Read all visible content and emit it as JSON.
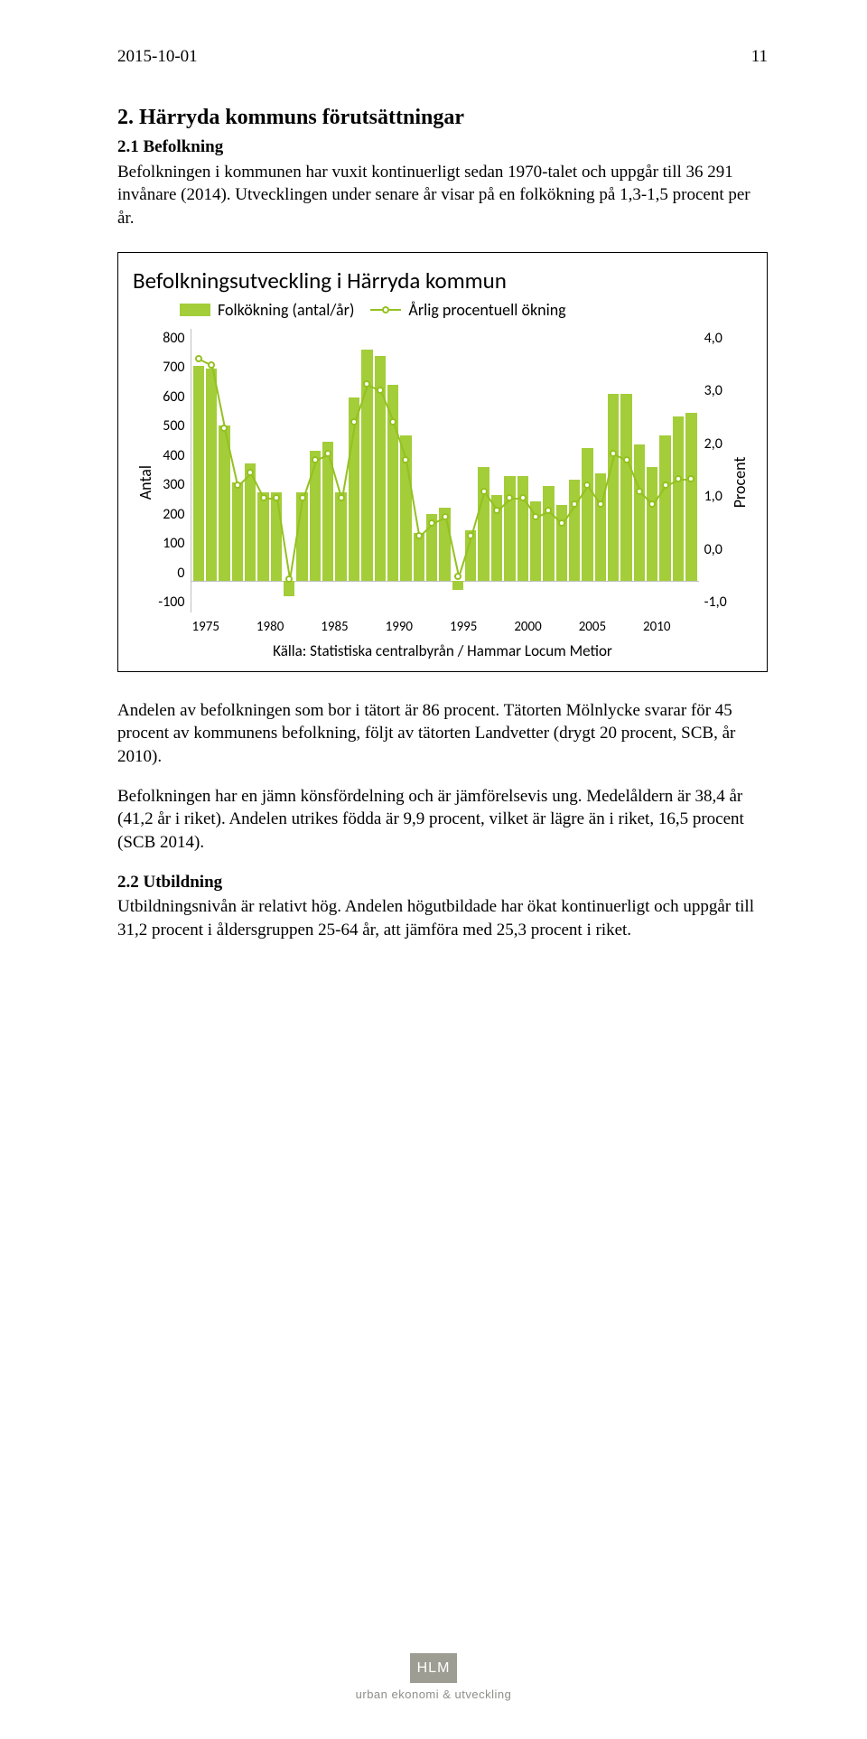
{
  "header": {
    "date": "2015-10-01",
    "page_number": "11"
  },
  "section2": {
    "heading": "2.    Härryda kommuns förutsättningar",
    "sub21_title": "2.1 Befolkning",
    "para1": "Befolkningen i kommunen har vuxit kontinuerligt sedan 1970-talet och uppgår till 36 291 invånare (2014). Utvecklingen under senare år visar på en folkökning på 1,3-1,5 procent per år.",
    "para2": "Andelen av befolkningen som bor i tätort är 86 procent. Tätorten Mölnlycke svarar för 45 procent av kommunens befolkning, följt av tätorten Landvetter (drygt 20 procent, SCB, år 2010).",
    "para3": "Befolkningen har en jämn könsfördelning och är jämförelsevis ung. Medelåldern är 38,4 år (41,2 år i riket). Andelen utrikes födda är 9,9 procent, vilket är lägre än i riket, 16,5 procent (SCB 2014).",
    "sub22_title": "2.2 Utbildning",
    "para4": "Utbildningsnivån är relativt hög. Andelen högutbildade har ökat kontinuerligt och uppgår till 31,2 procent i åldersgruppen 25-64 år, att jämföra med 25,3 procent i riket."
  },
  "chart": {
    "title": "Befolkningsutveckling i Härryda kommun",
    "legend_bar": "Folkökning (antal/år)",
    "legend_line": "Årlig procentuell ökning",
    "y_left_label": "Antal",
    "y_right_label": "Procent",
    "y_left_ticks": [
      "800",
      "700",
      "600",
      "500",
      "400",
      "300",
      "200",
      "100",
      "0",
      "-100"
    ],
    "y_right_ticks": [
      "4,0",
      "3,0",
      "2,0",
      "1,0",
      "0,0",
      "-1,0"
    ],
    "x_ticks": [
      "1975",
      "1980",
      "1985",
      "1990",
      "1995",
      "2000",
      "2005",
      "2010"
    ],
    "years": [
      1975,
      1976,
      1977,
      1978,
      1979,
      1980,
      1981,
      1982,
      1983,
      1984,
      1985,
      1986,
      1987,
      1988,
      1989,
      1990,
      1991,
      1992,
      1993,
      1994,
      1995,
      1996,
      1997,
      1998,
      1999,
      2000,
      2001,
      2002,
      2003,
      2004,
      2005,
      2006,
      2007,
      2008,
      2009,
      2010,
      2011,
      2012,
      2013
    ],
    "bar_values": [
      680,
      670,
      490,
      310,
      370,
      280,
      280,
      -50,
      280,
      410,
      440,
      280,
      580,
      730,
      710,
      620,
      460,
      150,
      210,
      230,
      -30,
      160,
      360,
      270,
      330,
      330,
      250,
      300,
      240,
      320,
      420,
      340,
      590,
      590,
      430,
      360,
      460,
      520,
      530
    ],
    "pct_values": [
      3.4,
      3.3,
      2.3,
      1.4,
      1.6,
      1.2,
      1.2,
      -0.2,
      1.2,
      1.8,
      1.9,
      1.2,
      2.4,
      3.0,
      2.9,
      2.4,
      1.8,
      0.6,
      0.8,
      0.9,
      -0.1,
      0.6,
      1.3,
      1.0,
      1.2,
      1.2,
      0.9,
      1.0,
      0.8,
      1.1,
      1.4,
      1.1,
      1.9,
      1.8,
      1.3,
      1.1,
      1.4,
      1.5,
      1.5
    ],
    "y_left_min": -100,
    "y_left_max": 800,
    "y_right_min": -1.0,
    "y_right_max": 4.0,
    "bar_color": "#a3cd39",
    "line_color": "#94c120",
    "marker_fill": "#ffffff",
    "grid_color": "#bfbfbf",
    "source": "Källa: Statistiska centralbyrån / Hammar Locum Metior"
  },
  "footer": {
    "logo_text": "HLM",
    "subtitle": "urban ekonomi & utveckling"
  }
}
